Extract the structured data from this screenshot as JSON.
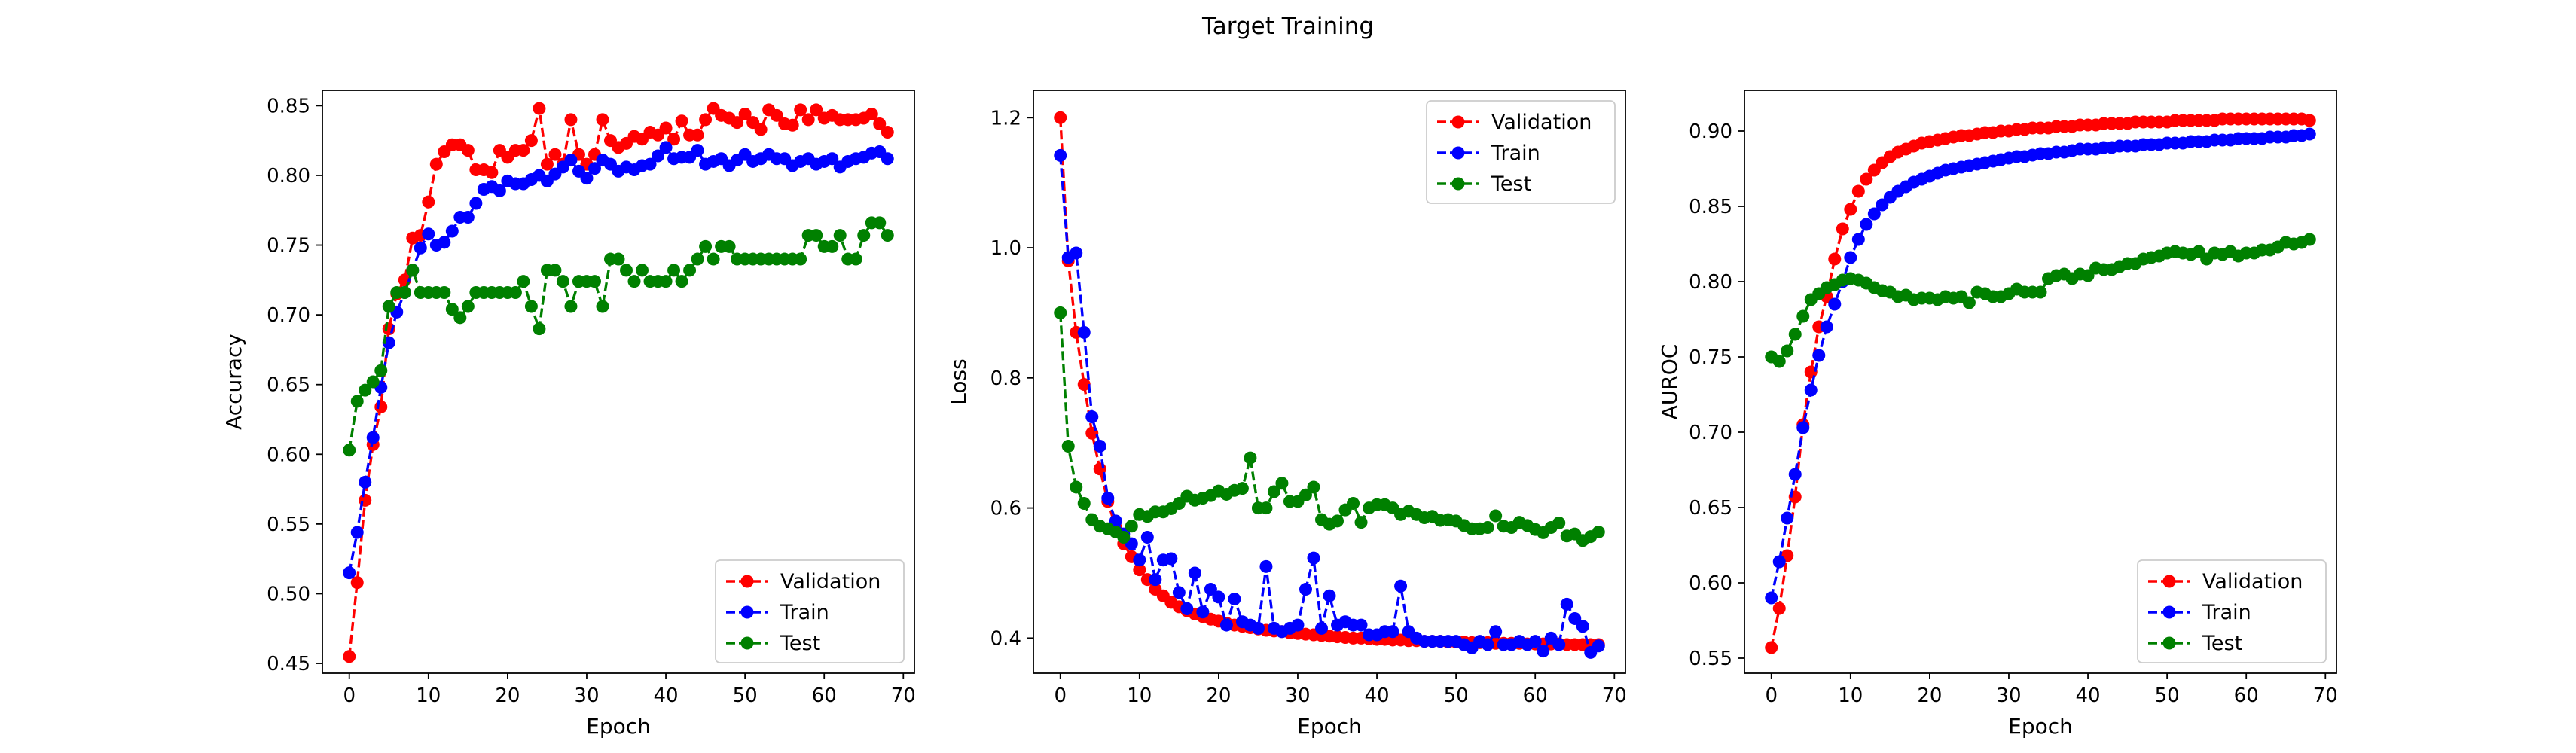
{
  "figure": {
    "suptitle": "Target Training"
  },
  "chart_data": [
    {
      "type": "line",
      "xlabel": "Epoch",
      "ylabel": "Accuracy",
      "xlim": [
        -3.4,
        71.4
      ],
      "ylim": [
        0.443,
        0.861
      ],
      "xticks": [
        0,
        10,
        20,
        30,
        40,
        50,
        60,
        70
      ],
      "yticks": [
        0.45,
        0.5,
        0.55,
        0.6,
        0.65,
        0.7,
        0.75,
        0.8,
        0.85
      ],
      "legend": "lower-right",
      "x": [
        0,
        1,
        2,
        3,
        4,
        5,
        6,
        7,
        8,
        9,
        10,
        11,
        12,
        13,
        14,
        15,
        16,
        17,
        18,
        19,
        20,
        21,
        22,
        23,
        24,
        25,
        26,
        27,
        28,
        29,
        30,
        31,
        32,
        33,
        34,
        35,
        36,
        37,
        38,
        39,
        40,
        41,
        42,
        43,
        44,
        45,
        46,
        47,
        48,
        49,
        50,
        51,
        52,
        53,
        54,
        55,
        56,
        57,
        58,
        59,
        60,
        61,
        62,
        63,
        64,
        65,
        66,
        67,
        68
      ],
      "series": [
        {
          "name": "Validation",
          "color": "#ff0000",
          "values": [
            0.455,
            0.508,
            0.567,
            0.607,
            0.634,
            0.69,
            0.715,
            0.725,
            0.755,
            0.757,
            0.781,
            0.808,
            0.817,
            0.822,
            0.822,
            0.818,
            0.804,
            0.804,
            0.802,
            0.818,
            0.813,
            0.818,
            0.818,
            0.825,
            0.848,
            0.808,
            0.815,
            0.808,
            0.84,
            0.815,
            0.808,
            0.815,
            0.84,
            0.825,
            0.82,
            0.823,
            0.828,
            0.826,
            0.831,
            0.829,
            0.834,
            0.826,
            0.839,
            0.829,
            0.829,
            0.84,
            0.848,
            0.843,
            0.841,
            0.838,
            0.844,
            0.838,
            0.833,
            0.847,
            0.843,
            0.837,
            0.836,
            0.847,
            0.84,
            0.847,
            0.841,
            0.843,
            0.84,
            0.84,
            0.84,
            0.841,
            0.844,
            0.837,
            0.831
          ]
        },
        {
          "name": "Train",
          "color": "#0000ff",
          "values": [
            0.515,
            0.544,
            0.58,
            0.612,
            0.648,
            0.68,
            0.702,
            0.716,
            0.732,
            0.748,
            0.758,
            0.75,
            0.752,
            0.76,
            0.77,
            0.77,
            0.78,
            0.79,
            0.792,
            0.789,
            0.796,
            0.794,
            0.794,
            0.797,
            0.8,
            0.796,
            0.801,
            0.806,
            0.811,
            0.803,
            0.798,
            0.805,
            0.811,
            0.808,
            0.803,
            0.806,
            0.804,
            0.807,
            0.808,
            0.814,
            0.82,
            0.812,
            0.813,
            0.813,
            0.818,
            0.808,
            0.81,
            0.812,
            0.807,
            0.811,
            0.815,
            0.81,
            0.812,
            0.815,
            0.812,
            0.812,
            0.807,
            0.81,
            0.812,
            0.808,
            0.81,
            0.812,
            0.806,
            0.81,
            0.812,
            0.813,
            0.816,
            0.817,
            0.812
          ]
        },
        {
          "name": "Test",
          "color": "#008000",
          "values": [
            0.603,
            0.638,
            0.646,
            0.652,
            0.66,
            0.706,
            0.716,
            0.716,
            0.732,
            0.716,
            0.716,
            0.716,
            0.716,
            0.704,
            0.698,
            0.706,
            0.716,
            0.716,
            0.716,
            0.716,
            0.716,
            0.716,
            0.724,
            0.706,
            0.69,
            0.732,
            0.732,
            0.724,
            0.706,
            0.724,
            0.724,
            0.724,
            0.706,
            0.74,
            0.74,
            0.732,
            0.724,
            0.732,
            0.724,
            0.724,
            0.724,
            0.732,
            0.724,
            0.732,
            0.74,
            0.749,
            0.74,
            0.749,
            0.749,
            0.74,
            0.74,
            0.74,
            0.74,
            0.74,
            0.74,
            0.74,
            0.74,
            0.74,
            0.757,
            0.757,
            0.749,
            0.749,
            0.757,
            0.74,
            0.74,
            0.757,
            0.766,
            0.766,
            0.757
          ]
        }
      ]
    },
    {
      "type": "line",
      "xlabel": "Epoch",
      "ylabel": "Loss",
      "xlim": [
        -3.4,
        71.4
      ],
      "ylim": [
        0.346,
        1.242
      ],
      "xticks": [
        0,
        10,
        20,
        30,
        40,
        50,
        60,
        70
      ],
      "yticks": [
        0.4,
        0.6,
        0.8,
        1.0,
        1.2
      ],
      "legend": "upper-right",
      "x": [
        0,
        1,
        2,
        3,
        4,
        5,
        6,
        7,
        8,
        9,
        10,
        11,
        12,
        13,
        14,
        15,
        16,
        17,
        18,
        19,
        20,
        21,
        22,
        23,
        24,
        25,
        26,
        27,
        28,
        29,
        30,
        31,
        32,
        33,
        34,
        35,
        36,
        37,
        38,
        39,
        40,
        41,
        42,
        43,
        44,
        45,
        46,
        47,
        48,
        49,
        50,
        51,
        52,
        53,
        54,
        55,
        56,
        57,
        58,
        59,
        60,
        61,
        62,
        63,
        64,
        65,
        66,
        67,
        68
      ],
      "series": [
        {
          "name": "Validation",
          "color": "#ff0000",
          "values": [
            1.2,
            0.98,
            0.87,
            0.79,
            0.715,
            0.66,
            0.61,
            0.57,
            0.545,
            0.525,
            0.505,
            0.49,
            0.475,
            0.465,
            0.455,
            0.448,
            0.442,
            0.437,
            0.433,
            0.429,
            0.426,
            0.423,
            0.42,
            0.418,
            0.416,
            0.414,
            0.412,
            0.411,
            0.41,
            0.408,
            0.407,
            0.406,
            0.405,
            0.404,
            0.403,
            0.402,
            0.401,
            0.4,
            0.4,
            0.399,
            0.398,
            0.398,
            0.397,
            0.397,
            0.396,
            0.396,
            0.395,
            0.395,
            0.395,
            0.394,
            0.394,
            0.394,
            0.393,
            0.393,
            0.393,
            0.392,
            0.392,
            0.392,
            0.392,
            0.391,
            0.391,
            0.391,
            0.391,
            0.391,
            0.39,
            0.39,
            0.39,
            0.39,
            0.39
          ]
        },
        {
          "name": "Train",
          "color": "#0000ff",
          "values": [
            1.142,
            0.985,
            0.992,
            0.87,
            0.74,
            0.695,
            0.615,
            0.58,
            0.56,
            0.545,
            0.52,
            0.555,
            0.49,
            0.52,
            0.522,
            0.47,
            0.445,
            0.5,
            0.44,
            0.475,
            0.463,
            0.42,
            0.46,
            0.425,
            0.42,
            0.415,
            0.51,
            0.415,
            0.41,
            0.415,
            0.42,
            0.475,
            0.523,
            0.415,
            0.465,
            0.42,
            0.425,
            0.42,
            0.42,
            0.405,
            0.405,
            0.41,
            0.41,
            0.48,
            0.41,
            0.4,
            0.395,
            0.395,
            0.395,
            0.395,
            0.395,
            0.39,
            0.385,
            0.395,
            0.39,
            0.41,
            0.39,
            0.39,
            0.395,
            0.39,
            0.395,
            0.38,
            0.4,
            0.39,
            0.452,
            0.43,
            0.418,
            0.378,
            0.388
          ]
        },
        {
          "name": "Test",
          "color": "#008000",
          "values": [
            0.9,
            0.695,
            0.632,
            0.607,
            0.582,
            0.572,
            0.568,
            0.563,
            0.555,
            0.572,
            0.59,
            0.587,
            0.594,
            0.594,
            0.599,
            0.607,
            0.618,
            0.612,
            0.615,
            0.619,
            0.626,
            0.621,
            0.627,
            0.63,
            0.677,
            0.6,
            0.6,
            0.625,
            0.638,
            0.61,
            0.61,
            0.62,
            0.632,
            0.582,
            0.575,
            0.58,
            0.597,
            0.607,
            0.578,
            0.6,
            0.605,
            0.605,
            0.6,
            0.59,
            0.595,
            0.59,
            0.585,
            0.587,
            0.581,
            0.582,
            0.58,
            0.573,
            0.568,
            0.568,
            0.57,
            0.588,
            0.572,
            0.57,
            0.578,
            0.573,
            0.567,
            0.562,
            0.57,
            0.577,
            0.557,
            0.56,
            0.55,
            0.556,
            0.563
          ]
        }
      ]
    },
    {
      "type": "line",
      "xlabel": "Epoch",
      "ylabel": "AUROC",
      "xlim": [
        -3.4,
        71.4
      ],
      "ylim": [
        0.54,
        0.927
      ],
      "xticks": [
        0,
        10,
        20,
        30,
        40,
        50,
        60,
        70
      ],
      "yticks": [
        0.55,
        0.6,
        0.65,
        0.7,
        0.75,
        0.8,
        0.85,
        0.9
      ],
      "legend": "lower-right",
      "x": [
        0,
        1,
        2,
        3,
        4,
        5,
        6,
        7,
        8,
        9,
        10,
        11,
        12,
        13,
        14,
        15,
        16,
        17,
        18,
        19,
        20,
        21,
        22,
        23,
        24,
        25,
        26,
        27,
        28,
        29,
        30,
        31,
        32,
        33,
        34,
        35,
        36,
        37,
        38,
        39,
        40,
        41,
        42,
        43,
        44,
        45,
        46,
        47,
        48,
        49,
        50,
        51,
        52,
        53,
        54,
        55,
        56,
        57,
        58,
        59,
        60,
        61,
        62,
        63,
        64,
        65,
        66,
        67,
        68
      ],
      "series": [
        {
          "name": "Validation",
          "color": "#ff0000",
          "values": [
            0.557,
            0.583,
            0.618,
            0.657,
            0.705,
            0.74,
            0.77,
            0.79,
            0.815,
            0.835,
            0.848,
            0.86,
            0.868,
            0.874,
            0.879,
            0.883,
            0.886,
            0.888,
            0.89,
            0.892,
            0.893,
            0.894,
            0.895,
            0.896,
            0.897,
            0.897,
            0.898,
            0.899,
            0.899,
            0.9,
            0.9,
            0.901,
            0.901,
            0.902,
            0.902,
            0.902,
            0.903,
            0.903,
            0.903,
            0.904,
            0.904,
            0.904,
            0.905,
            0.905,
            0.905,
            0.905,
            0.906,
            0.906,
            0.906,
            0.906,
            0.906,
            0.907,
            0.907,
            0.907,
            0.907,
            0.907,
            0.907,
            0.908,
            0.908,
            0.908,
            0.908,
            0.908,
            0.908,
            0.908,
            0.908,
            0.908,
            0.908,
            0.908,
            0.907
          ]
        },
        {
          "name": "Train",
          "color": "#0000ff",
          "values": [
            0.59,
            0.614,
            0.643,
            0.672,
            0.703,
            0.728,
            0.751,
            0.77,
            0.785,
            0.8,
            0.816,
            0.828,
            0.838,
            0.845,
            0.851,
            0.856,
            0.86,
            0.863,
            0.866,
            0.868,
            0.87,
            0.872,
            0.874,
            0.875,
            0.876,
            0.877,
            0.878,
            0.879,
            0.88,
            0.881,
            0.882,
            0.883,
            0.883,
            0.884,
            0.885,
            0.885,
            0.886,
            0.886,
            0.887,
            0.888,
            0.888,
            0.888,
            0.889,
            0.889,
            0.89,
            0.89,
            0.89,
            0.891,
            0.891,
            0.891,
            0.892,
            0.892,
            0.892,
            0.893,
            0.893,
            0.893,
            0.894,
            0.894,
            0.894,
            0.895,
            0.895,
            0.895,
            0.895,
            0.896,
            0.896,
            0.896,
            0.897,
            0.897,
            0.898
          ]
        },
        {
          "name": "Test",
          "color": "#008000",
          "values": [
            0.75,
            0.747,
            0.754,
            0.765,
            0.777,
            0.788,
            0.792,
            0.796,
            0.798,
            0.801,
            0.802,
            0.801,
            0.799,
            0.796,
            0.794,
            0.793,
            0.79,
            0.791,
            0.788,
            0.789,
            0.789,
            0.788,
            0.79,
            0.789,
            0.79,
            0.786,
            0.793,
            0.792,
            0.79,
            0.79,
            0.792,
            0.795,
            0.793,
            0.793,
            0.793,
            0.802,
            0.804,
            0.805,
            0.802,
            0.805,
            0.804,
            0.809,
            0.808,
            0.808,
            0.81,
            0.812,
            0.812,
            0.815,
            0.816,
            0.817,
            0.819,
            0.82,
            0.819,
            0.818,
            0.82,
            0.815,
            0.819,
            0.818,
            0.82,
            0.817,
            0.819,
            0.819,
            0.821,
            0.821,
            0.823,
            0.826,
            0.825,
            0.826,
            0.828
          ]
        }
      ]
    }
  ]
}
